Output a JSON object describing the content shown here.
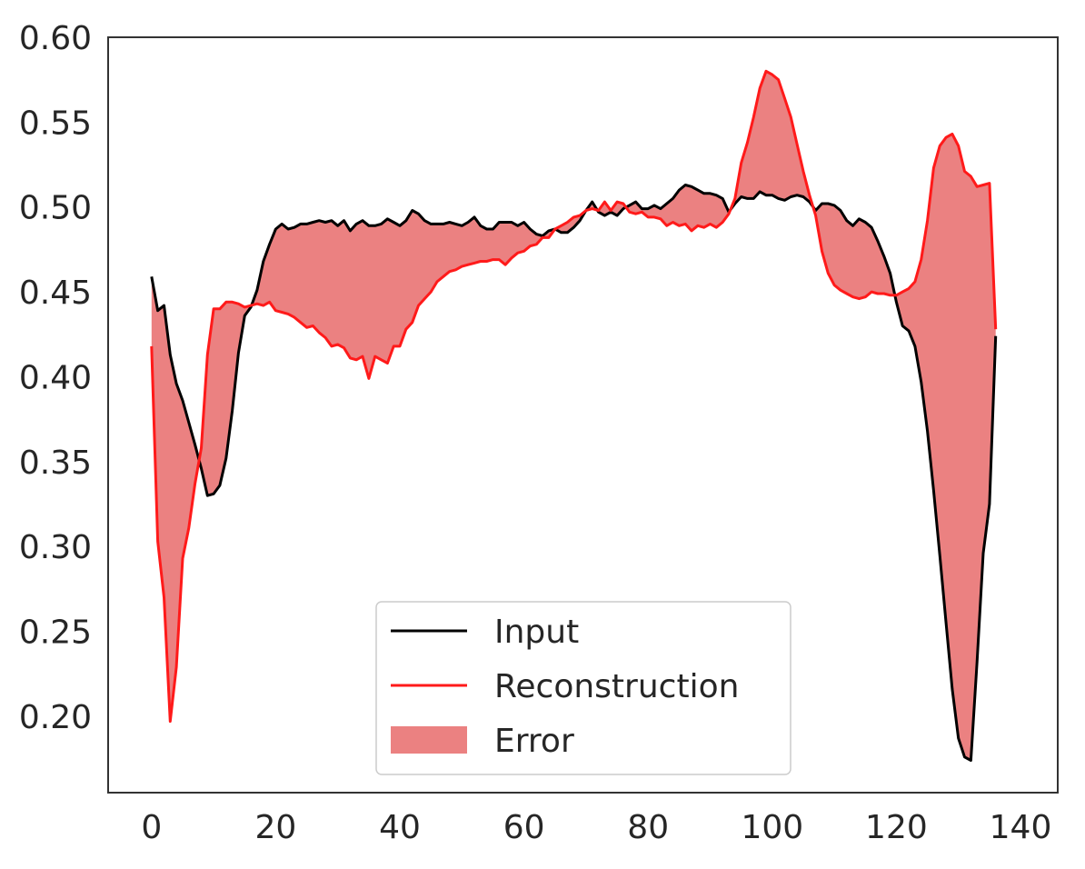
{
  "chart_data": {
    "type": "line",
    "title": "",
    "xlabel": "",
    "ylabel": "",
    "xlim": [
      -7,
      146
    ],
    "ylim": [
      0.155,
      0.6
    ],
    "x_ticks": [
      0,
      20,
      40,
      60,
      80,
      100,
      120,
      140
    ],
    "y_ticks": [
      0.2,
      0.25,
      0.3,
      0.35,
      0.4,
      0.45,
      0.5,
      0.55,
      0.6
    ],
    "grid": false,
    "legend_position": "lower center",
    "series": [
      {
        "name": "Input",
        "color": "#000000",
        "points": [
          [
            0,
            0.459
          ],
          [
            1,
            0.439
          ],
          [
            2,
            0.442
          ],
          [
            3,
            0.413
          ],
          [
            4,
            0.396
          ],
          [
            5,
            0.386
          ],
          [
            6,
            0.373
          ],
          [
            7,
            0.36
          ],
          [
            8,
            0.346
          ],
          [
            9,
            0.33
          ],
          [
            10,
            0.331
          ],
          [
            11,
            0.336
          ],
          [
            12,
            0.352
          ],
          [
            13,
            0.38
          ],
          [
            14,
            0.414
          ],
          [
            15,
            0.436
          ],
          [
            16,
            0.441
          ],
          [
            17,
            0.451
          ],
          [
            18,
            0.468
          ],
          [
            19,
            0.478
          ],
          [
            20,
            0.487
          ],
          [
            21,
            0.49
          ],
          [
            22,
            0.487
          ],
          [
            23,
            0.488
          ],
          [
            24,
            0.49
          ],
          [
            25,
            0.49
          ],
          [
            26,
            0.491
          ],
          [
            27,
            0.492
          ],
          [
            28,
            0.491
          ],
          [
            29,
            0.492
          ],
          [
            30,
            0.489
          ],
          [
            31,
            0.492
          ],
          [
            32,
            0.486
          ],
          [
            33,
            0.49
          ],
          [
            34,
            0.492
          ],
          [
            35,
            0.489
          ],
          [
            36,
            0.489
          ],
          [
            37,
            0.49
          ],
          [
            38,
            0.493
          ],
          [
            39,
            0.491
          ],
          [
            40,
            0.489
          ],
          [
            41,
            0.492
          ],
          [
            42,
            0.498
          ],
          [
            43,
            0.496
          ],
          [
            44,
            0.492
          ],
          [
            45,
            0.49
          ],
          [
            46,
            0.49
          ],
          [
            47,
            0.49
          ],
          [
            48,
            0.491
          ],
          [
            49,
            0.49
          ],
          [
            50,
            0.489
          ],
          [
            51,
            0.491
          ],
          [
            52,
            0.494
          ],
          [
            53,
            0.489
          ],
          [
            54,
            0.487
          ],
          [
            55,
            0.487
          ],
          [
            56,
            0.491
          ],
          [
            57,
            0.491
          ],
          [
            58,
            0.491
          ],
          [
            59,
            0.489
          ],
          [
            60,
            0.491
          ],
          [
            61,
            0.487
          ],
          [
            62,
            0.484
          ],
          [
            63,
            0.483
          ],
          [
            64,
            0.486
          ],
          [
            65,
            0.487
          ],
          [
            66,
            0.485
          ],
          [
            67,
            0.485
          ],
          [
            68,
            0.488
          ],
          [
            69,
            0.492
          ],
          [
            70,
            0.498
          ],
          [
            71,
            0.503
          ],
          [
            72,
            0.497
          ],
          [
            73,
            0.495
          ],
          [
            74,
            0.497
          ],
          [
            75,
            0.495
          ],
          [
            76,
            0.499
          ],
          [
            77,
            0.501
          ],
          [
            78,
            0.503
          ],
          [
            79,
            0.499
          ],
          [
            80,
            0.499
          ],
          [
            81,
            0.501
          ],
          [
            82,
            0.499
          ],
          [
            83,
            0.502
          ],
          [
            84,
            0.505
          ],
          [
            85,
            0.51
          ],
          [
            86,
            0.513
          ],
          [
            87,
            0.512
          ],
          [
            88,
            0.51
          ],
          [
            89,
            0.508
          ],
          [
            90,
            0.508
          ],
          [
            91,
            0.507
          ],
          [
            92,
            0.505
          ],
          [
            93,
            0.497
          ],
          [
            94,
            0.502
          ],
          [
            95,
            0.506
          ],
          [
            96,
            0.505
          ],
          [
            97,
            0.505
          ],
          [
            98,
            0.509
          ],
          [
            99,
            0.507
          ],
          [
            100,
            0.507
          ],
          [
            101,
            0.505
          ],
          [
            102,
            0.504
          ],
          [
            103,
            0.506
          ],
          [
            104,
            0.507
          ],
          [
            105,
            0.506
          ],
          [
            106,
            0.503
          ],
          [
            107,
            0.498
          ],
          [
            108,
            0.502
          ],
          [
            109,
            0.502
          ],
          [
            110,
            0.501
          ],
          [
            111,
            0.498
          ],
          [
            112,
            0.492
          ],
          [
            113,
            0.489
          ],
          [
            114,
            0.493
          ],
          [
            115,
            0.491
          ],
          [
            116,
            0.488
          ],
          [
            117,
            0.48
          ],
          [
            118,
            0.471
          ],
          [
            119,
            0.461
          ],
          [
            120,
            0.444
          ],
          [
            121,
            0.43
          ],
          [
            122,
            0.427
          ],
          [
            123,
            0.418
          ],
          [
            124,
            0.397
          ],
          [
            125,
            0.368
          ],
          [
            126,
            0.333
          ],
          [
            127,
            0.295
          ],
          [
            128,
            0.255
          ],
          [
            129,
            0.216
          ],
          [
            130,
            0.187
          ],
          [
            131,
            0.176
          ],
          [
            132,
            0.174
          ],
          [
            133,
            0.232
          ],
          [
            134,
            0.296
          ],
          [
            135,
            0.325
          ],
          [
            136,
            0.424
          ]
        ]
      },
      {
        "name": "Reconstruction",
        "color": "#ff1a1a",
        "points": [
          [
            0,
            0.418
          ],
          [
            1,
            0.303
          ],
          [
            2,
            0.27
          ],
          [
            3,
            0.197
          ],
          [
            4,
            0.229
          ],
          [
            5,
            0.293
          ],
          [
            6,
            0.311
          ],
          [
            7,
            0.337
          ],
          [
            8,
            0.358
          ],
          [
            9,
            0.413
          ],
          [
            10,
            0.44
          ],
          [
            11,
            0.44
          ],
          [
            12,
            0.444
          ],
          [
            13,
            0.444
          ],
          [
            14,
            0.443
          ],
          [
            15,
            0.441
          ],
          [
            16,
            0.442
          ],
          [
            17,
            0.443
          ],
          [
            18,
            0.442
          ],
          [
            19,
            0.444
          ],
          [
            20,
            0.439
          ],
          [
            21,
            0.438
          ],
          [
            22,
            0.437
          ],
          [
            23,
            0.435
          ],
          [
            24,
            0.432
          ],
          [
            25,
            0.429
          ],
          [
            26,
            0.43
          ],
          [
            27,
            0.426
          ],
          [
            28,
            0.423
          ],
          [
            29,
            0.418
          ],
          [
            30,
            0.419
          ],
          [
            31,
            0.417
          ],
          [
            32,
            0.411
          ],
          [
            33,
            0.41
          ],
          [
            34,
            0.412
          ],
          [
            35,
            0.399
          ],
          [
            36,
            0.412
          ],
          [
            37,
            0.41
          ],
          [
            38,
            0.408
          ],
          [
            39,
            0.418
          ],
          [
            40,
            0.418
          ],
          [
            41,
            0.428
          ],
          [
            42,
            0.432
          ],
          [
            43,
            0.442
          ],
          [
            44,
            0.446
          ],
          [
            45,
            0.45
          ],
          [
            46,
            0.456
          ],
          [
            47,
            0.459
          ],
          [
            48,
            0.462
          ],
          [
            49,
            0.463
          ],
          [
            50,
            0.465
          ],
          [
            51,
            0.466
          ],
          [
            52,
            0.467
          ],
          [
            53,
            0.468
          ],
          [
            54,
            0.468
          ],
          [
            55,
            0.469
          ],
          [
            56,
            0.469
          ],
          [
            57,
            0.466
          ],
          [
            58,
            0.47
          ],
          [
            59,
            0.473
          ],
          [
            60,
            0.474
          ],
          [
            61,
            0.477
          ],
          [
            62,
            0.478
          ],
          [
            63,
            0.482
          ],
          [
            64,
            0.482
          ],
          [
            65,
            0.487
          ],
          [
            66,
            0.489
          ],
          [
            67,
            0.491
          ],
          [
            68,
            0.494
          ],
          [
            69,
            0.495
          ],
          [
            70,
            0.498
          ],
          [
            71,
            0.499
          ],
          [
            72,
            0.498
          ],
          [
            73,
            0.503
          ],
          [
            74,
            0.498
          ],
          [
            75,
            0.503
          ],
          [
            76,
            0.502
          ],
          [
            77,
            0.497
          ],
          [
            78,
            0.496
          ],
          [
            79,
            0.497
          ],
          [
            80,
            0.494
          ],
          [
            81,
            0.494
          ],
          [
            82,
            0.493
          ],
          [
            83,
            0.489
          ],
          [
            84,
            0.491
          ],
          [
            85,
            0.489
          ],
          [
            86,
            0.49
          ],
          [
            87,
            0.486
          ],
          [
            88,
            0.489
          ],
          [
            89,
            0.488
          ],
          [
            90,
            0.49
          ],
          [
            91,
            0.488
          ],
          [
            92,
            0.491
          ],
          [
            93,
            0.496
          ],
          [
            94,
            0.505
          ],
          [
            95,
            0.526
          ],
          [
            96,
            0.538
          ],
          [
            97,
            0.553
          ],
          [
            98,
            0.57
          ],
          [
            99,
            0.58
          ],
          [
            100,
            0.578
          ],
          [
            101,
            0.575
          ],
          [
            102,
            0.564
          ],
          [
            103,
            0.553
          ],
          [
            104,
            0.537
          ],
          [
            105,
            0.521
          ],
          [
            106,
            0.507
          ],
          [
            107,
            0.495
          ],
          [
            108,
            0.474
          ],
          [
            109,
            0.461
          ],
          [
            110,
            0.454
          ],
          [
            111,
            0.451
          ],
          [
            112,
            0.449
          ],
          [
            113,
            0.447
          ],
          [
            114,
            0.446
          ],
          [
            115,
            0.447
          ],
          [
            116,
            0.45
          ],
          [
            117,
            0.449
          ],
          [
            118,
            0.449
          ],
          [
            119,
            0.448
          ],
          [
            120,
            0.448
          ],
          [
            121,
            0.45
          ],
          [
            122,
            0.452
          ],
          [
            123,
            0.456
          ],
          [
            124,
            0.469
          ],
          [
            125,
            0.492
          ],
          [
            126,
            0.523
          ],
          [
            127,
            0.536
          ],
          [
            128,
            0.541
          ],
          [
            129,
            0.543
          ],
          [
            130,
            0.536
          ],
          [
            131,
            0.521
          ],
          [
            132,
            0.518
          ],
          [
            133,
            0.512
          ],
          [
            134,
            0.513
          ],
          [
            135,
            0.514
          ],
          [
            136,
            0.428
          ]
        ]
      }
    ],
    "fill": {
      "name": "Error",
      "color": "#eb8181",
      "between": [
        "Input",
        "Reconstruction"
      ]
    },
    "legend": [
      "Input",
      "Reconstruction",
      "Error"
    ]
  }
}
